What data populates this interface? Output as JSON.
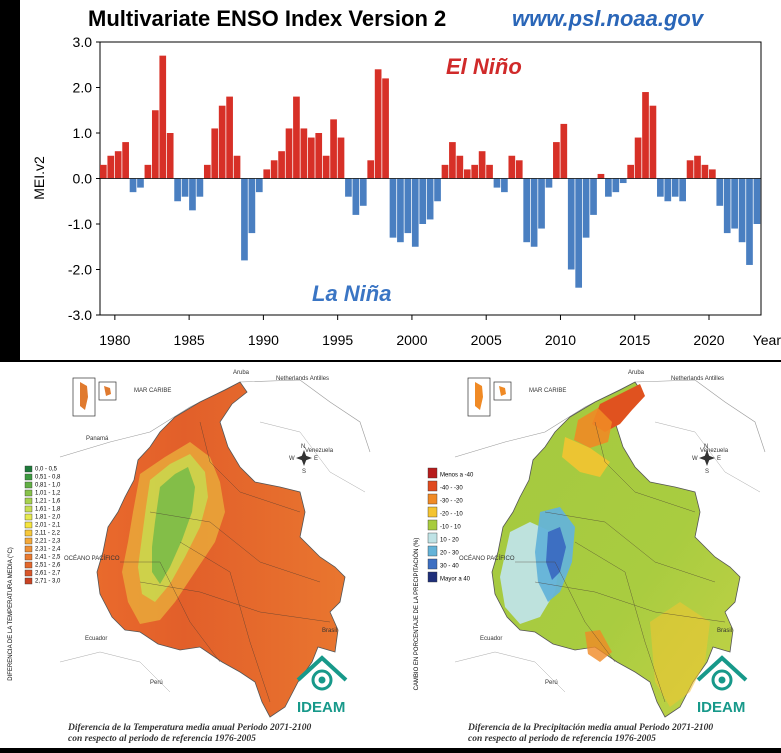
{
  "chart_data": [
    {
      "type": "bar",
      "title": "Multivariate ENSO Index Version 2",
      "source_label": "www.psl.noaa.gov",
      "ylabel": "MEI.v2",
      "xlabel": "Year",
      "ylim": [
        -3.0,
        3.0
      ],
      "xlim": [
        1979,
        2023.5
      ],
      "yticks": [
        "3.0",
        "2.0",
        "1.0",
        "0.0",
        "-1.0",
        "-2.0",
        "-3.0"
      ],
      "xticks": [
        "1980",
        "1985",
        "1990",
        "1995",
        "2000",
        "2005",
        "2010",
        "2015",
        "2020"
      ],
      "annotations": {
        "positive": "El Niño",
        "negative": "La Niña"
      },
      "colors": {
        "positive": "#d73027",
        "negative": "#4a7fc1"
      },
      "series": [
        {
          "name": "MEI.v2 (bimonthly)",
          "x": [
            1979.0,
            1979.5,
            1980.0,
            1980.5,
            1981.0,
            1981.5,
            1982.0,
            1982.5,
            1983.0,
            1983.5,
            1984.0,
            1984.5,
            1985.0,
            1985.5,
            1986.0,
            1986.5,
            1987.0,
            1987.5,
            1988.0,
            1988.5,
            1989.0,
            1989.5,
            1990.0,
            1990.5,
            1991.0,
            1991.5,
            1992.0,
            1992.5,
            1993.0,
            1993.5,
            1994.0,
            1994.5,
            1995.0,
            1995.5,
            1996.0,
            1996.5,
            1997.0,
            1997.5,
            1998.0,
            1998.5,
            1999.0,
            1999.5,
            2000.0,
            2000.5,
            2001.0,
            2001.5,
            2002.0,
            2002.5,
            2003.0,
            2003.5,
            2004.0,
            2004.5,
            2005.0,
            2005.5,
            2006.0,
            2006.5,
            2007.0,
            2007.5,
            2008.0,
            2008.5,
            2009.0,
            2009.5,
            2010.0,
            2010.5,
            2011.0,
            2011.5,
            2012.0,
            2012.5,
            2013.0,
            2013.5,
            2014.0,
            2014.5,
            2015.0,
            2015.5,
            2016.0,
            2016.5,
            2017.0,
            2017.5,
            2018.0,
            2018.5,
            2019.0,
            2019.5,
            2020.0,
            2020.5,
            2021.0,
            2021.5,
            2022.0,
            2022.5,
            2023.0
          ],
          "values": [
            0.3,
            0.5,
            0.6,
            0.8,
            -0.3,
            -0.2,
            0.3,
            1.5,
            2.7,
            1.0,
            -0.5,
            -0.4,
            -0.7,
            -0.4,
            0.3,
            1.1,
            1.6,
            1.8,
            0.5,
            -1.8,
            -1.2,
            -0.3,
            0.2,
            0.4,
            0.6,
            1.1,
            1.8,
            1.1,
            0.9,
            1.0,
            0.5,
            1.3,
            0.9,
            -0.4,
            -0.8,
            -0.6,
            0.4,
            2.4,
            2.2,
            -1.3,
            -1.4,
            -1.2,
            -1.5,
            -1.0,
            -0.9,
            -0.5,
            0.3,
            0.8,
            0.5,
            0.2,
            0.3,
            0.6,
            0.3,
            -0.2,
            -0.3,
            0.5,
            0.4,
            -1.4,
            -1.5,
            -1.1,
            -0.2,
            0.8,
            1.2,
            -2.0,
            -2.4,
            -1.3,
            -0.8,
            0.1,
            -0.4,
            -0.3,
            -0.1,
            0.3,
            0.9,
            1.9,
            1.6,
            -0.4,
            -0.5,
            -0.4,
            -0.5,
            0.4,
            0.5,
            0.3,
            0.2,
            -0.6,
            -1.2,
            -1.1,
            -1.4,
            -1.9,
            -1.0
          ]
        }
      ]
    },
    {
      "type": "heatmap",
      "title": "Diferencia de la Temperatura media anual Periodo 2071-2100 con respecto al periodo de referencia 1976-2005",
      "legend_title": "DIFERENCIA DE LA TEMPERATURA MEDIA (°C)",
      "legend": [
        {
          "label": "0,0 - 0,5",
          "color": "#1e7a3a"
        },
        {
          "label": "0,51 - 0,8",
          "color": "#3c9a3f"
        },
        {
          "label": "0,81 - 1,0",
          "color": "#62b045"
        },
        {
          "label": "1,01 - 1,2",
          "color": "#87c24a"
        },
        {
          "label": "1,21 - 1,6",
          "color": "#a7d24f"
        },
        {
          "label": "1,61 - 1,8",
          "color": "#c8de52"
        },
        {
          "label": "1,81 - 2,0",
          "color": "#e6e94e"
        },
        {
          "label": "2,01 - 2,1",
          "color": "#f5e43d"
        },
        {
          "label": "2,11 - 2,2",
          "color": "#f7c83a"
        },
        {
          "label": "2,21 - 2,3",
          "color": "#f4a93a"
        },
        {
          "label": "2,31 - 2,4",
          "color": "#ef8f35"
        },
        {
          "label": "2,41 - 2,5",
          "color": "#ea7a30"
        },
        {
          "label": "2,51 - 2,6",
          "color": "#e3682c"
        },
        {
          "label": "2,61 - 2,7",
          "color": "#d9572a"
        },
        {
          "label": "2,71 - 3,0",
          "color": "#c94324"
        }
      ],
      "map_labels": [
        "Aruba",
        "Netherlands Antilles",
        "MAR CARIBE",
        "Panamá",
        "Venezuela",
        "OCÉANO PACÍFICO",
        "Ecuador",
        "Perú",
        "Brasil"
      ],
      "compass": {
        "n": "N",
        "s": "S",
        "e": "E",
        "w": "W"
      },
      "logo": "IDEAM"
    },
    {
      "type": "heatmap",
      "title": "Diferencia de la Precipitación media anual Periodo 2071-2100 con respecto al periodo de referencia 1976-2005",
      "legend_title": "CAMBIO EN PORCENTAJE DE LA PRECIPITACIÓN (%)",
      "legend": [
        {
          "label": "Menos a -40",
          "color": "#b71c1c"
        },
        {
          "label": "-40 - -30",
          "color": "#e04a1f"
        },
        {
          "label": "-30 - -20",
          "color": "#f08a25"
        },
        {
          "label": "-20 - -10",
          "color": "#f4c431"
        },
        {
          "label": "-10 - 10",
          "color": "#a8cc3e"
        },
        {
          "label": "10 - 20",
          "color": "#bfe3e6"
        },
        {
          "label": "20 - 30",
          "color": "#64b3d8"
        },
        {
          "label": "30 - 40",
          "color": "#3d6fc2"
        },
        {
          "label": "Mayor a 40",
          "color": "#1f2f7a"
        }
      ],
      "map_labels": [
        "Aruba",
        "Netherlands Antilles",
        "MAR CARIBE",
        "Venezuela",
        "OCÉANO PACÍFICO",
        "Ecuador",
        "Perú",
        "Brasil"
      ],
      "compass": {
        "n": "N",
        "s": "S",
        "e": "E",
        "w": "W"
      },
      "logo": "IDEAM"
    }
  ]
}
